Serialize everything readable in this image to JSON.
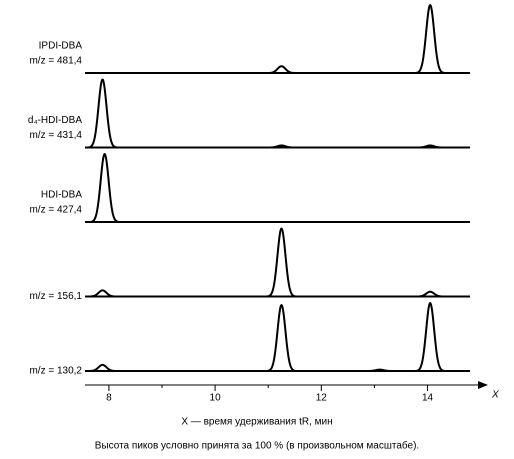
{
  "chart_data": {
    "type": "chromatogram",
    "color": "#000000",
    "series": [
      {
        "name": "IPDI-DBA",
        "mz": "m/z = 481,4",
        "peaks": [
          {
            "x": 11.25,
            "height": 10
          },
          {
            "x": 14.05,
            "height": 100
          }
        ]
      },
      {
        "name": "d₄-HDI-DBA",
        "mz": "m/z = 431,4",
        "peaks": [
          {
            "x": 7.88,
            "height": 100
          },
          {
            "x": 11.25,
            "height": 3
          },
          {
            "x": 14.05,
            "height": 3
          }
        ]
      },
      {
        "name": "HDI-DBA",
        "mz": "m/z = 427,4",
        "peaks": [
          {
            "x": 7.92,
            "height": 100
          }
        ]
      },
      {
        "mz": "m/z = 156,1",
        "peaks": [
          {
            "x": 7.88,
            "height": 9
          },
          {
            "x": 11.25,
            "height": 100
          },
          {
            "x": 14.05,
            "height": 7
          }
        ]
      },
      {
        "mz": "m/z = 130,2",
        "peaks": [
          {
            "x": 7.88,
            "height": 9
          },
          {
            "x": 11.25,
            "height": 97
          },
          {
            "x": 13.1,
            "height": 2
          },
          {
            "x": 14.05,
            "height": 100
          }
        ]
      }
    ],
    "xlim": [
      7.55,
      14.8
    ],
    "xticks": [
      8,
      10,
      12,
      14
    ],
    "xminorticks": [
      9,
      11,
      13
    ],
    "x_axis_symbol": "X",
    "xlabel": "X — время удерживания tR, мин",
    "footnote": "Высота пиков условно принята за 100 % (в произвольном масштабе)."
  }
}
